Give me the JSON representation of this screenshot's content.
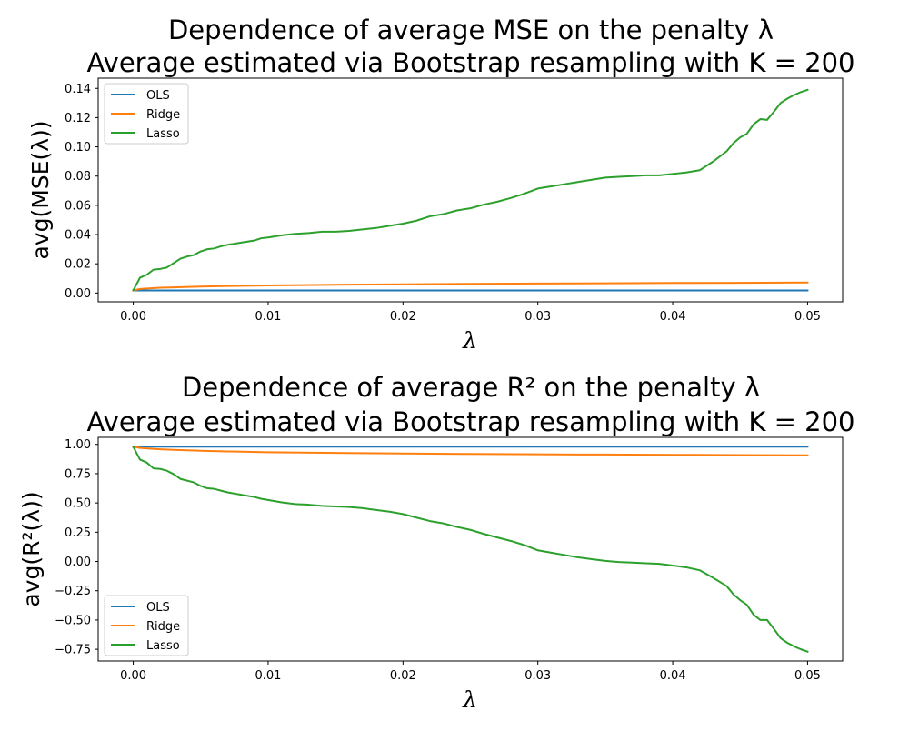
{
  "chart_data": [
    {
      "type": "line",
      "title_line1": "Dependence of average MSE on the penalty λ",
      "title_line2": "Average estimated via Bootstrap resampling with K = 200",
      "xlabel": "λ",
      "ylabel": "avg(MSE(λ))",
      "xlim": [
        -0.0026,
        0.0526
      ],
      "ylim": [
        -0.006,
        0.147
      ],
      "xticks": [
        "0.00",
        "0.01",
        "0.02",
        "0.03",
        "0.04",
        "0.05"
      ],
      "yticks": [
        "0.00",
        "0.02",
        "0.04",
        "0.06",
        "0.08",
        "0.10",
        "0.12",
        "0.14"
      ],
      "grid": false,
      "legend_position": "upper left",
      "series": [
        {
          "name": "OLS",
          "color": "#1f77b4",
          "points": [
            [
              0.0,
              0.0018
            ],
            [
              0.05,
              0.0018
            ]
          ]
        },
        {
          "name": "Ridge",
          "color": "#ff7f0e",
          "points": [
            [
              0.0,
              0.0018
            ],
            [
              0.0005,
              0.0028
            ],
            [
              0.001,
              0.0031
            ],
            [
              0.002,
              0.0036
            ],
            [
              0.003,
              0.0039
            ],
            [
              0.005,
              0.0044
            ],
            [
              0.007,
              0.0048
            ],
            [
              0.01,
              0.0052
            ],
            [
              0.015,
              0.0057
            ],
            [
              0.02,
              0.006
            ],
            [
              0.025,
              0.0063
            ],
            [
              0.03,
              0.0065
            ],
            [
              0.035,
              0.0067
            ],
            [
              0.04,
              0.0069
            ],
            [
              0.045,
              0.007
            ],
            [
              0.05,
              0.0072
            ]
          ]
        },
        {
          "name": "Lasso",
          "color": "#2ca02c",
          "points": [
            [
              0.0,
              0.0018
            ],
            [
              0.0005,
              0.0105
            ],
            [
              0.001,
              0.0125
            ],
            [
              0.0015,
              0.016
            ],
            [
              0.002,
              0.0165
            ],
            [
              0.0025,
              0.0175
            ],
            [
              0.003,
              0.0205
            ],
            [
              0.0035,
              0.0235
            ],
            [
              0.004,
              0.025
            ],
            [
              0.0045,
              0.026
            ],
            [
              0.005,
              0.0285
            ],
            [
              0.0055,
              0.03
            ],
            [
              0.006,
              0.0305
            ],
            [
              0.0065,
              0.032
            ],
            [
              0.007,
              0.033
            ],
            [
              0.008,
              0.0345
            ],
            [
              0.009,
              0.036
            ],
            [
              0.0095,
              0.0375
            ],
            [
              0.01,
              0.038
            ],
            [
              0.011,
              0.0395
            ],
            [
              0.012,
              0.0405
            ],
            [
              0.013,
              0.041
            ],
            [
              0.014,
              0.042
            ],
            [
              0.015,
              0.042
            ],
            [
              0.016,
              0.0425
            ],
            [
              0.017,
              0.0435
            ],
            [
              0.018,
              0.0445
            ],
            [
              0.019,
              0.046
            ],
            [
              0.02,
              0.0475
            ],
            [
              0.021,
              0.0495
            ],
            [
              0.022,
              0.0525
            ],
            [
              0.023,
              0.054
            ],
            [
              0.024,
              0.0565
            ],
            [
              0.025,
              0.058
            ],
            [
              0.026,
              0.0605
            ],
            [
              0.027,
              0.0625
            ],
            [
              0.028,
              0.065
            ],
            [
              0.029,
              0.068
            ],
            [
              0.03,
              0.0715
            ],
            [
              0.031,
              0.073
            ],
            [
              0.032,
              0.0745
            ],
            [
              0.033,
              0.076
            ],
            [
              0.034,
              0.0775
            ],
            [
              0.035,
              0.079
            ],
            [
              0.036,
              0.0795
            ],
            [
              0.037,
              0.08
            ],
            [
              0.038,
              0.0805
            ],
            [
              0.039,
              0.0805
            ],
            [
              0.04,
              0.0815
            ],
            [
              0.041,
              0.0825
            ],
            [
              0.042,
              0.084
            ],
            [
              0.043,
              0.09
            ],
            [
              0.044,
              0.097
            ],
            [
              0.0445,
              0.1025
            ],
            [
              0.045,
              0.1065
            ],
            [
              0.0455,
              0.109
            ],
            [
              0.046,
              0.1155
            ],
            [
              0.0465,
              0.119
            ],
            [
              0.047,
              0.1185
            ],
            [
              0.0475,
              0.124
            ],
            [
              0.048,
              0.13
            ],
            [
              0.0485,
              0.133
            ],
            [
              0.049,
              0.1355
            ],
            [
              0.0495,
              0.1375
            ],
            [
              0.05,
              0.139
            ]
          ]
        }
      ]
    },
    {
      "type": "line",
      "title_line1": "Dependence of average R² on the penalty λ",
      "title_line2": "Average estimated via Bootstrap resampling with K = 200",
      "xlabel": "λ",
      "ylabel": "avg(R²(λ))",
      "xlim": [
        -0.0026,
        0.0526
      ],
      "ylim": [
        -0.85,
        1.06
      ],
      "xticks": [
        "0.00",
        "0.01",
        "0.02",
        "0.03",
        "0.04",
        "0.05"
      ],
      "yticks": [
        "1.00",
        "0.75",
        "0.50",
        "0.25",
        "0.00",
        "−0.25",
        "−0.50",
        "−0.75"
      ],
      "grid": false,
      "legend_position": "lower left",
      "series": [
        {
          "name": "OLS",
          "color": "#1f77b4",
          "points": [
            [
              0.0,
              0.98
            ],
            [
              0.05,
              0.98
            ]
          ]
        },
        {
          "name": "Ridge",
          "color": "#ff7f0e",
          "points": [
            [
              0.0,
              0.98
            ],
            [
              0.0005,
              0.97
            ],
            [
              0.001,
              0.965
            ],
            [
              0.002,
              0.958
            ],
            [
              0.003,
              0.953
            ],
            [
              0.005,
              0.945
            ],
            [
              0.007,
              0.94
            ],
            [
              0.01,
              0.933
            ],
            [
              0.015,
              0.927
            ],
            [
              0.02,
              0.922
            ],
            [
              0.025,
              0.918
            ],
            [
              0.03,
              0.915
            ],
            [
              0.035,
              0.913
            ],
            [
              0.04,
              0.911
            ],
            [
              0.045,
              0.909
            ],
            [
              0.05,
              0.907
            ]
          ]
        },
        {
          "name": "Lasso",
          "color": "#2ca02c",
          "points": [
            [
              0.0,
              0.98
            ],
            [
              0.0005,
              0.87
            ],
            [
              0.001,
              0.845
            ],
            [
              0.0015,
              0.795
            ],
            [
              0.002,
              0.79
            ],
            [
              0.0025,
              0.775
            ],
            [
              0.003,
              0.745
            ],
            [
              0.0035,
              0.705
            ],
            [
              0.004,
              0.69
            ],
            [
              0.0045,
              0.675
            ],
            [
              0.005,
              0.645
            ],
            [
              0.0055,
              0.625
            ],
            [
              0.006,
              0.62
            ],
            [
              0.0065,
              0.605
            ],
            [
              0.007,
              0.59
            ],
            [
              0.008,
              0.57
            ],
            [
              0.009,
              0.55
            ],
            [
              0.0095,
              0.535
            ],
            [
              0.01,
              0.525
            ],
            [
              0.011,
              0.505
            ],
            [
              0.012,
              0.49
            ],
            [
              0.013,
              0.485
            ],
            [
              0.014,
              0.475
            ],
            [
              0.015,
              0.47
            ],
            [
              0.016,
              0.465
            ],
            [
              0.017,
              0.455
            ],
            [
              0.018,
              0.44
            ],
            [
              0.019,
              0.425
            ],
            [
              0.02,
              0.405
            ],
            [
              0.021,
              0.375
            ],
            [
              0.022,
              0.345
            ],
            [
              0.023,
              0.325
            ],
            [
              0.024,
              0.295
            ],
            [
              0.025,
              0.27
            ],
            [
              0.026,
              0.235
            ],
            [
              0.027,
              0.205
            ],
            [
              0.028,
              0.175
            ],
            [
              0.029,
              0.14
            ],
            [
              0.03,
              0.095
            ],
            [
              0.031,
              0.075
            ],
            [
              0.032,
              0.055
            ],
            [
              0.033,
              0.035
            ],
            [
              0.034,
              0.02
            ],
            [
              0.035,
              0.005
            ],
            [
              0.036,
              -0.005
            ],
            [
              0.037,
              -0.01
            ],
            [
              0.038,
              -0.015
            ],
            [
              0.039,
              -0.02
            ],
            [
              0.04,
              -0.035
            ],
            [
              0.041,
              -0.05
            ],
            [
              0.042,
              -0.075
            ],
            [
              0.043,
              -0.14
            ],
            [
              0.044,
              -0.21
            ],
            [
              0.0445,
              -0.28
            ],
            [
              0.045,
              -0.33
            ],
            [
              0.0455,
              -0.37
            ],
            [
              0.046,
              -0.455
            ],
            [
              0.0465,
              -0.5
            ],
            [
              0.047,
              -0.5
            ],
            [
              0.0475,
              -0.575
            ],
            [
              0.048,
              -0.655
            ],
            [
              0.0485,
              -0.695
            ],
            [
              0.049,
              -0.725
            ],
            [
              0.0495,
              -0.75
            ],
            [
              0.05,
              -0.77
            ]
          ]
        }
      ]
    }
  ]
}
